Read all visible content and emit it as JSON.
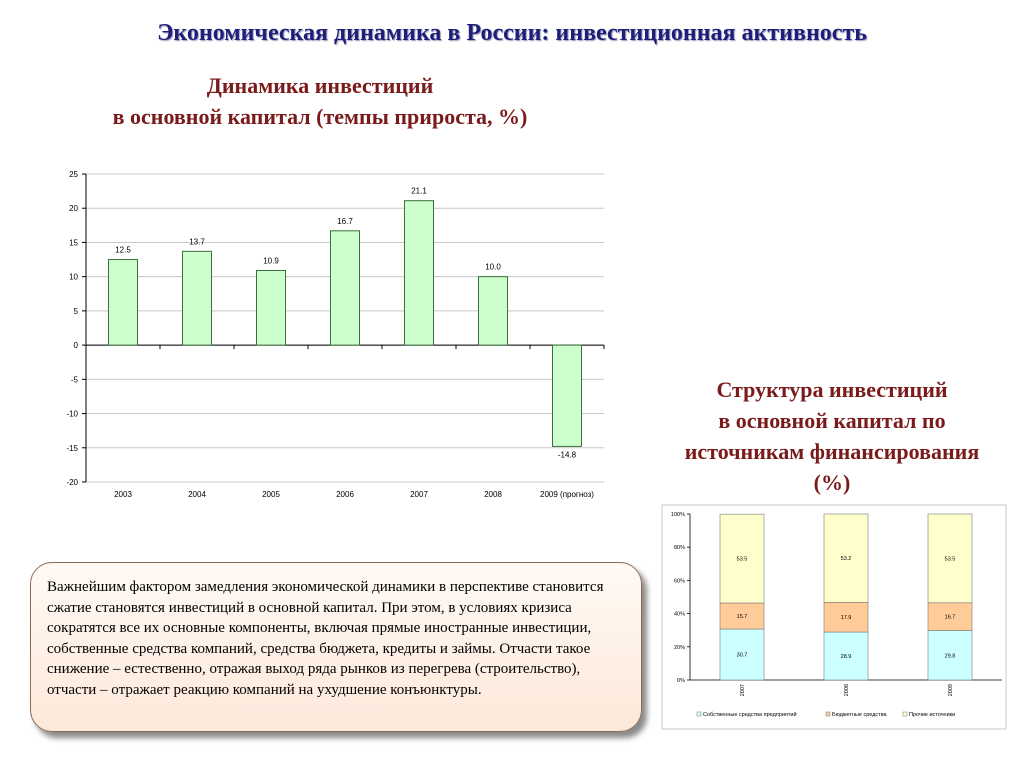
{
  "page": {
    "title": "Экономическая динамика в России: инвестиционная активность",
    "left_title": [
      "Динамика инвестиций",
      "в основной капитал (темпы прироста, %)"
    ],
    "right_title": [
      "Структура инвестиций",
      "в основной капитал по",
      "источникам финансирования",
      "(%)"
    ],
    "note": "Важнейшим фактором замедления экономической динамики в перспективе становится сжатие становятся инвестиций в основной капитал. При этом, в условиях кризиса сократятся все их основные компоненты, включая прямые иностранные инвестиции, собственные средства компаний, средства бюджета, кредиты и займы. Отчасти такое снижение – естественно, отражая выход ряда рынков из перегрева (строительство), отчасти – отражает реакцию компаний на ухудшение конъюнктуры."
  },
  "chart_data": [
    {
      "type": "bar",
      "categories": [
        "2003",
        "2004",
        "2005",
        "2006",
        "2007",
        "2008",
        "2009 (прогноз)"
      ],
      "values": [
        12.5,
        13.7,
        10.9,
        16.7,
        21.1,
        10.0,
        -14.8
      ],
      "data_labels": [
        "12.5",
        "13.7",
        "10.9",
        "16.7",
        "21.1",
        "10.0",
        "-14.8"
      ],
      "ylim": [
        -20,
        25
      ],
      "yticks": [
        -20,
        -15,
        -10,
        -5,
        0,
        5,
        10,
        15,
        20,
        25
      ],
      "grid": true,
      "colors": {
        "bar_fill": "#ccffcc",
        "bar_stroke": "#3c6e3c",
        "grid": "#c8c8c8"
      }
    },
    {
      "type": "bar",
      "stacked": true,
      "percent": true,
      "categories": [
        "2007",
        "2008",
        "2009"
      ],
      "series": [
        {
          "name": "Собственные средства предприятий",
          "values": [
            30.7,
            28.9,
            29.8
          ],
          "color": "#ccffff"
        },
        {
          "name": "Бюджетные средства",
          "values": [
            15.7,
            17.9,
            16.7
          ],
          "color": "#ffcc99"
        },
        {
          "name": "Прочие источники",
          "values": [
            53.5,
            53.2,
            53.5
          ],
          "color": "#ffffcc"
        }
      ],
      "ylim": [
        0,
        100
      ],
      "yticks": [
        "0%",
        "20%",
        "40%",
        "60%",
        "80%",
        "100%"
      ],
      "legend_position": "bottom"
    }
  ]
}
